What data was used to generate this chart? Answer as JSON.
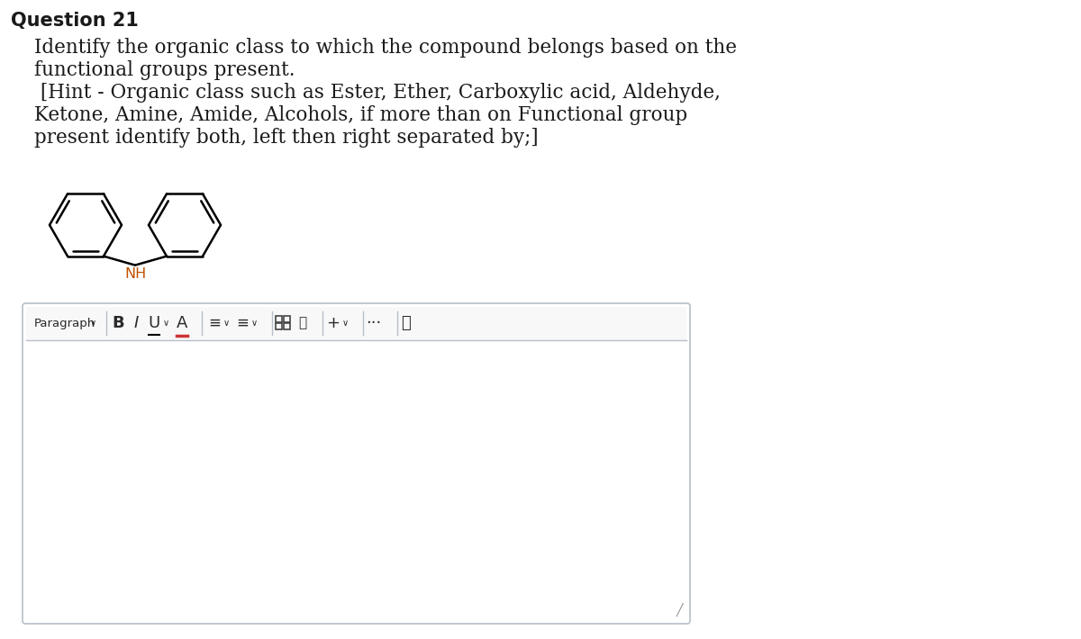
{
  "title": "Question 21",
  "q_line1": "Identify the organic class to which the compound belongs based on the",
  "q_line2": "functional groups present.",
  "h_line1": " [Hint - Organic class such as Ester, Ether, Carboxylic acid, Aldehyde,",
  "h_line2": "Ketone, Amine, Amide, Alcohols, if more than on Functional group",
  "h_line3": "present identify both, left then right separated by;]",
  "nh_color": "#c05000",
  "text_color": "#1a1a1a",
  "bg_color": "#ffffff",
  "box_border": "#b8bfc8",
  "toolbar_bg": "#f8f8f8",
  "title_fs": 15,
  "body_fs": 15.5
}
